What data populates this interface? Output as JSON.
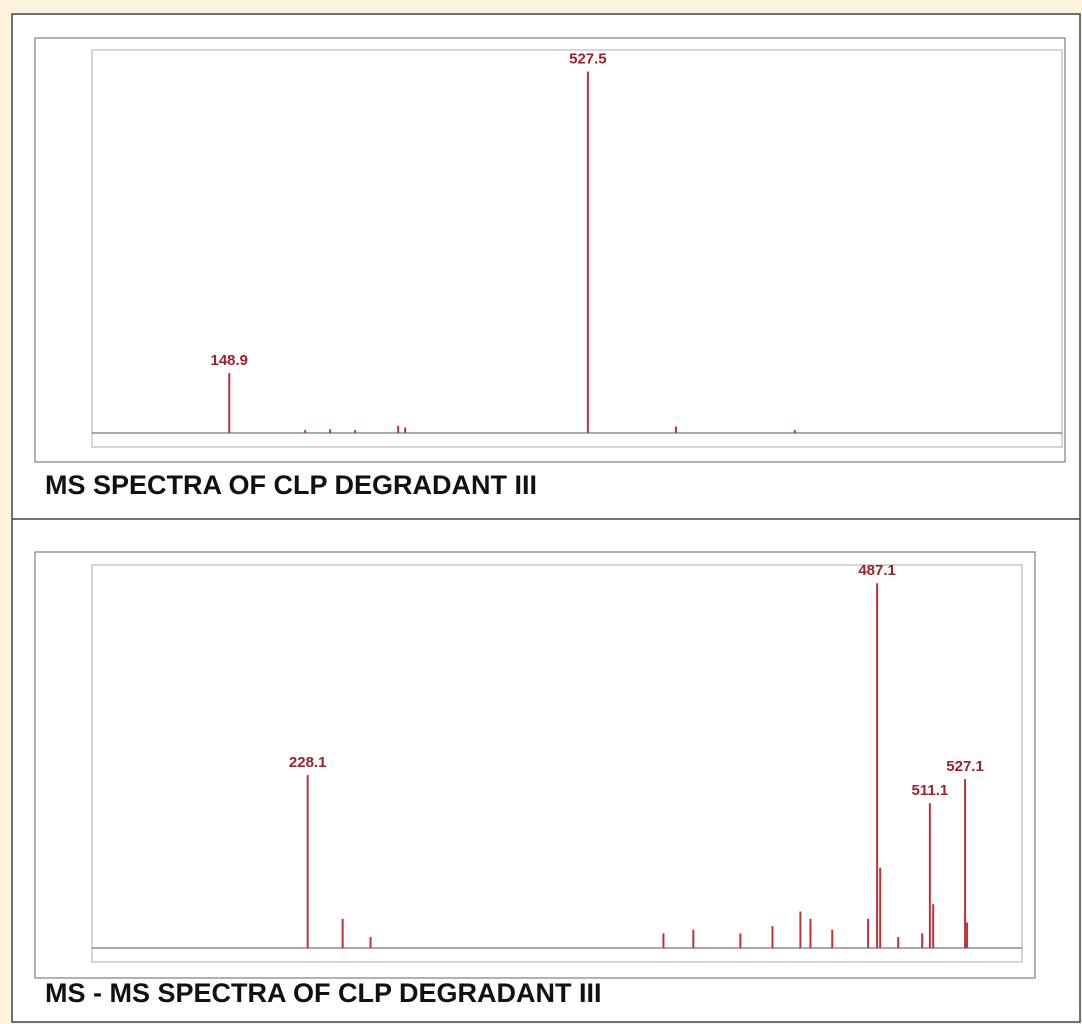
{
  "chart_data": [
    {
      "type": "stem",
      "title": "MS SPECTRA OF CLP DEGRADANT III",
      "x": [
        148.9,
        229.1,
        255.4,
        281.8,
        327.2,
        334.6,
        527.5,
        620.4,
        745.9
      ],
      "values": [
        16.6,
        0.8,
        1,
        0.8,
        2,
        1.5,
        100,
        1.8,
        0.8
      ],
      "labeled": [
        true,
        false,
        false,
        false,
        false,
        false,
        true,
        false,
        false
      ],
      "color": "#c0303a",
      "xlim": [
        4,
        1028
      ],
      "ylim": [
        0,
        106
      ]
    },
    {
      "type": "stem",
      "title": "MS - MS SPECTRA OF CLP DEGRADANT III",
      "x": [
        228.1,
        244.0,
        256.7,
        389.9,
        403.5,
        424.9,
        439.5,
        452.2,
        456.8,
        466.7,
        483.0,
        487.1,
        488.5,
        496.7,
        507.6,
        511.1,
        512.6,
        527.1,
        528.0
      ],
      "values": [
        47.4,
        8,
        3,
        4,
        5,
        4,
        6,
        10,
        8,
        5,
        8,
        100,
        22,
        3,
        4,
        39.7,
        12,
        46.3,
        7
      ],
      "labeled": [
        true,
        false,
        false,
        false,
        false,
        false,
        false,
        false,
        false,
        false,
        false,
        true,
        false,
        false,
        false,
        true,
        false,
        true,
        false
      ],
      "color": "#c0303a",
      "xlim": [
        130,
        553
      ],
      "ylim": [
        0,
        105
      ]
    }
  ]
}
